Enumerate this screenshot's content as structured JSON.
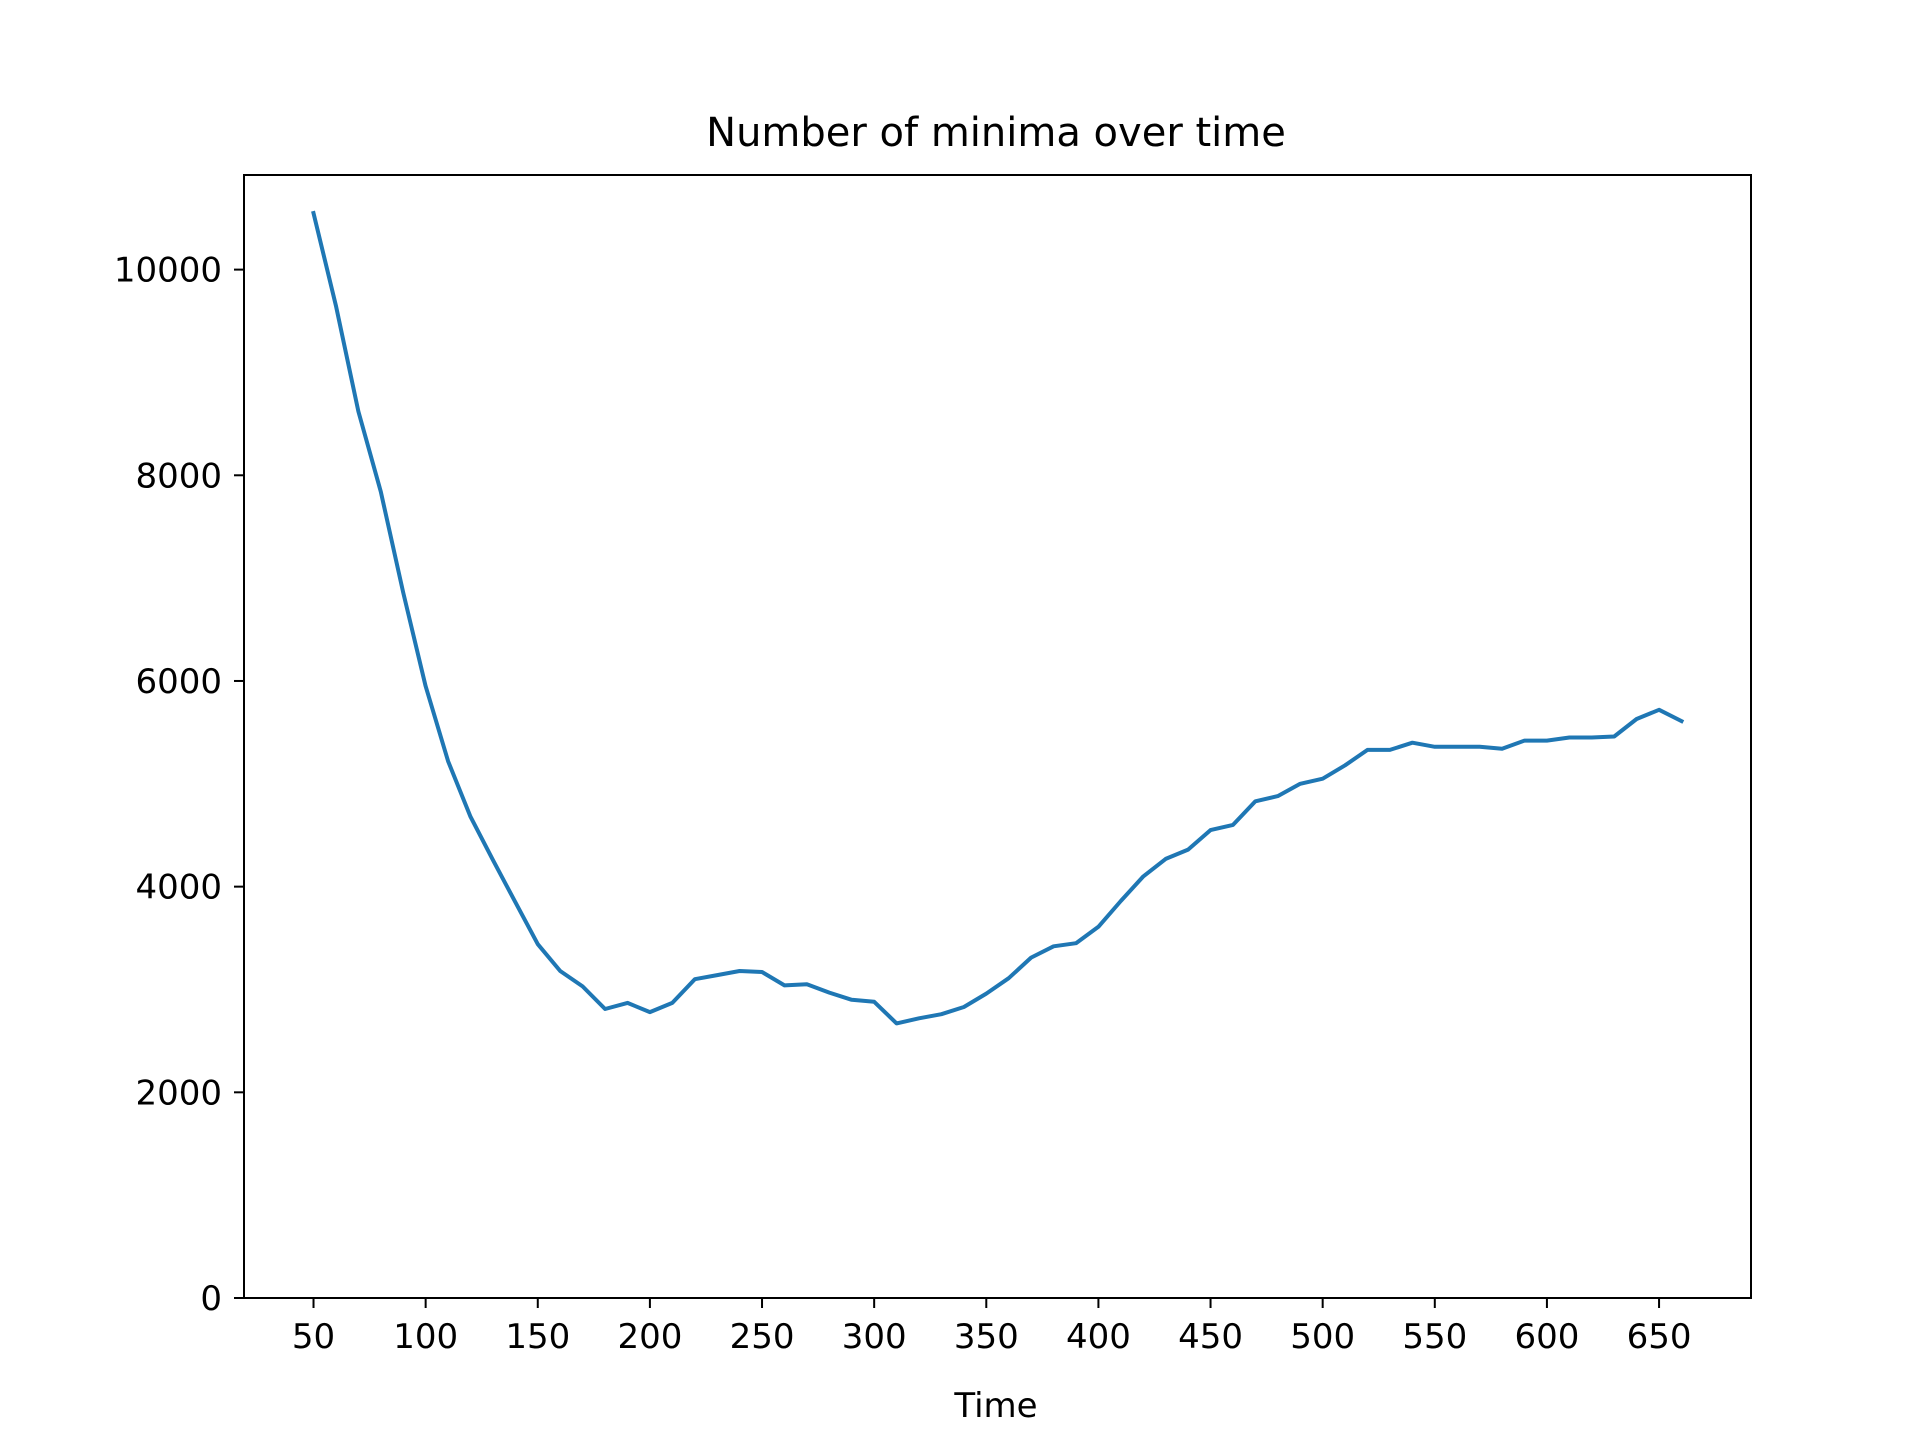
{
  "chart_data": {
    "type": "line",
    "title": "Number of minima over time",
    "xlabel": "Time",
    "ylabel": "",
    "xlim": [
      19,
      691
    ],
    "ylim": [
      0,
      10920
    ],
    "x_ticks": [
      50,
      100,
      150,
      200,
      250,
      300,
      350,
      400,
      450,
      500,
      550,
      600,
      650
    ],
    "y_ticks": [
      0,
      2000,
      4000,
      6000,
      8000,
      10000
    ],
    "grid": false,
    "legend": "none",
    "series": [
      {
        "color": "#1f77b4",
        "x": [
          50,
          60,
          70,
          80,
          90,
          100,
          110,
          120,
          130,
          140,
          150,
          160,
          170,
          180,
          190,
          200,
          210,
          220,
          230,
          240,
          250,
          260,
          270,
          280,
          290,
          300,
          310,
          320,
          330,
          340,
          350,
          360,
          370,
          380,
          390,
          400,
          410,
          420,
          430,
          440,
          450,
          460,
          470,
          480,
          490,
          500,
          510,
          520,
          530,
          540,
          550,
          560,
          570,
          580,
          590,
          600,
          610,
          620,
          630,
          640,
          650,
          660
        ],
        "y": [
          10550,
          9650,
          8620,
          7840,
          6860,
          5950,
          5220,
          4680,
          4260,
          3850,
          3440,
          3180,
          3030,
          2810,
          2870,
          2780,
          2870,
          3100,
          3140,
          3180,
          3170,
          3040,
          3050,
          2970,
          2900,
          2880,
          2670,
          2720,
          2760,
          2830,
          2960,
          3110,
          3310,
          3420,
          3450,
          3610,
          3860,
          4100,
          4270,
          4360,
          4550,
          4600,
          4830,
          4880,
          5000,
          5050,
          5180,
          5330,
          5330,
          5400,
          5360,
          5360,
          5360,
          5340,
          5420,
          5420,
          5450,
          5450,
          5460,
          5630,
          5720,
          5610
        ]
      }
    ]
  }
}
